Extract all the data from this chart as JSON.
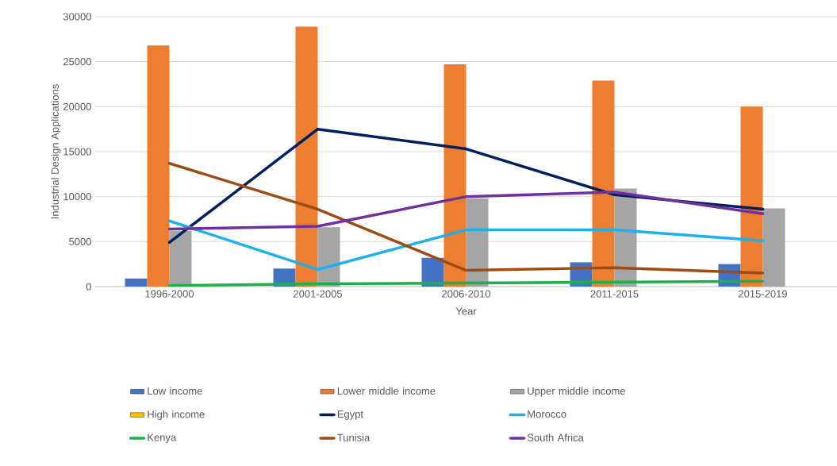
{
  "chart_data": {
    "type": "bar",
    "xlabel": "Year",
    "ylabel": "Industrial Design Applications",
    "categories": [
      "1996-2000",
      "2001-2005",
      "2006-2010",
      "2011-2015",
      "2015-2019"
    ],
    "ylim": [
      0,
      30000
    ],
    "yticks": [
      0,
      5000,
      10000,
      15000,
      20000,
      25000,
      30000
    ],
    "grid": "y",
    "legend": "bottom",
    "series": [
      {
        "name": "Low income",
        "color": "#4472c4",
        "values": [
          900,
          2000,
          3200,
          2700,
          2500
        ]
      },
      {
        "name": "Lower middle income",
        "color": "#ed7d31",
        "values": [
          26800,
          28900,
          24700,
          22900,
          20000
        ]
      },
      {
        "name": "Upper middle income",
        "color": "#a5a5a5",
        "values": [
          6200,
          6600,
          9800,
          10900,
          8700
        ]
      },
      {
        "name": "High income",
        "color": "#ffc000",
        "values": [
          null,
          null,
          null,
          null,
          null
        ]
      },
      {
        "name": "Egypt",
        "type": "line",
        "color": "#002060",
        "values": [
          4900,
          17500,
          15300,
          10200,
          8600
        ]
      },
      {
        "name": "Morocco",
        "type": "line",
        "color": "#1cb0ed",
        "values": [
          7300,
          1900,
          6300,
          6300,
          5100
        ]
      },
      {
        "name": "Kenya",
        "type": "line",
        "color": "#1db14c",
        "values": [
          100,
          300,
          400,
          500,
          600
        ]
      },
      {
        "name": "Tunisia",
        "type": "line",
        "color": "#9e4b14",
        "values": [
          13700,
          8600,
          1800,
          2100,
          1500
        ]
      },
      {
        "name": "South Africa",
        "type": "line",
        "color": "#7030a0",
        "values": [
          6400,
          6700,
          10000,
          10500,
          8100
        ]
      }
    ]
  }
}
